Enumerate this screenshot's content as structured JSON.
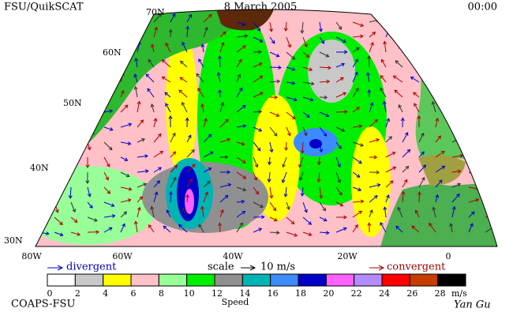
{
  "header": {
    "title": "FSU/QuikSCAT",
    "date": "8 March 2005",
    "time": "00:00"
  },
  "map": {
    "lat_labels": [
      "70N",
      "60N",
      "50N",
      "40N",
      "30N"
    ],
    "lon_labels": [
      "80W",
      "60W",
      "40W",
      "20W",
      "0"
    ]
  },
  "legend": {
    "divergent": "divergent",
    "scale": "scale",
    "scale_value": "10 m/s",
    "convergent": "convergent",
    "colorbar": {
      "ticks": [
        0,
        2,
        4,
        6,
        8,
        10,
        12,
        14,
        16,
        18,
        20,
        22,
        24,
        26,
        28
      ],
      "unit": "m/s",
      "label": "Speed",
      "colors": [
        "#ffffff",
        "#c8c8c8",
        "#ffff00",
        "#ffc0c8",
        "#98ff98",
        "#00ee00",
        "#909090",
        "#00b4b4",
        "#3c8cff",
        "#0000c8",
        "#ff60ff",
        "#b48cff",
        "#ff0000",
        "#c83c00",
        "#000000"
      ]
    }
  },
  "footer": {
    "credit": "COAPS-FSU",
    "signature": "Yan Gu"
  }
}
